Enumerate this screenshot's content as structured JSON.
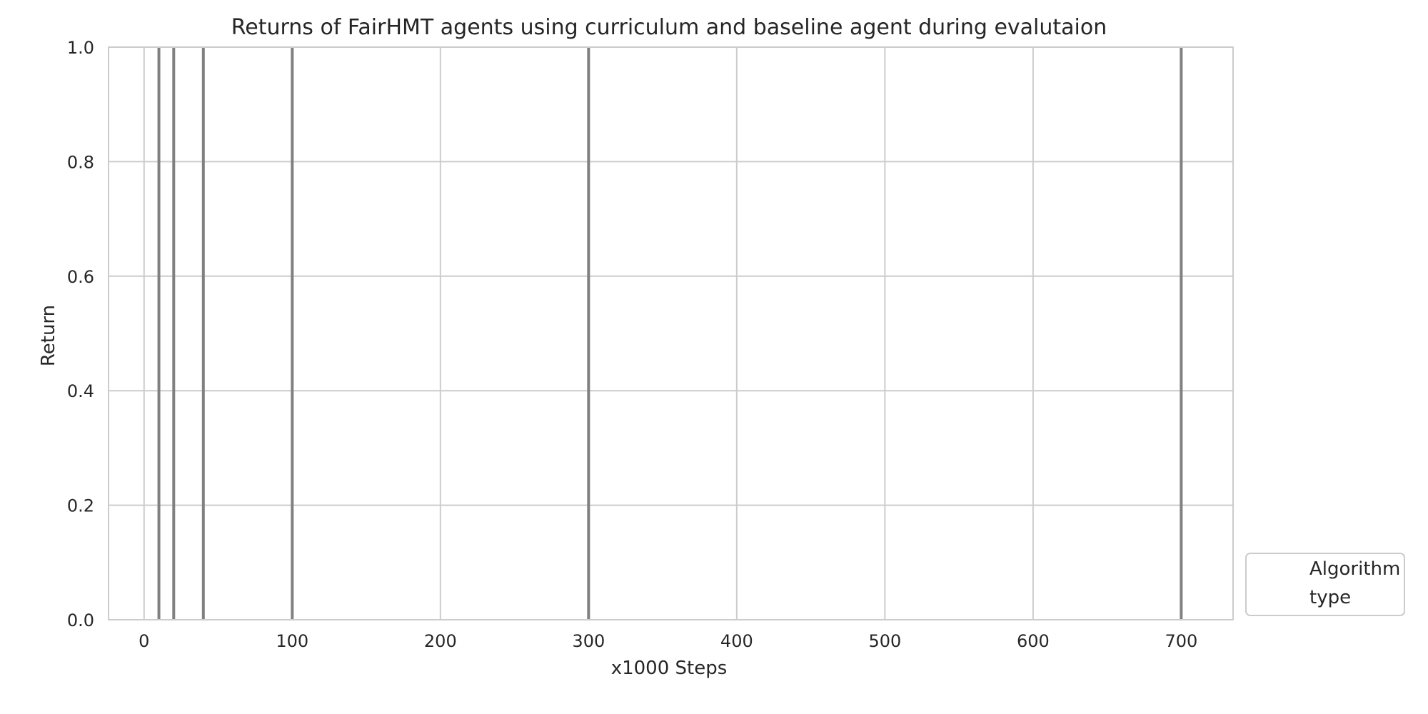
{
  "chart_data": {
    "type": "line",
    "title": "Returns of FairHMT agents using curriculum and baseline agent during evalutaion",
    "xlabel": "x1000 Steps",
    "ylabel": "Return",
    "xlim": [
      -24,
      735
    ],
    "ylim": [
      0.0,
      1.0
    ],
    "xticks": [
      0,
      100,
      200,
      300,
      400,
      500,
      600,
      700
    ],
    "xtick_labels": [
      "0",
      "100",
      "200",
      "300",
      "400",
      "500",
      "600",
      "700"
    ],
    "yticks": [
      0.0,
      0.2,
      0.4,
      0.6,
      0.8,
      1.0
    ],
    "ytick_labels": [
      "0.0",
      "0.2",
      "0.4",
      "0.6",
      "0.8",
      "1.0"
    ],
    "grid": true,
    "series": [],
    "vertical_lines": [
      {
        "x": 10,
        "color": "#808080"
      },
      {
        "x": 20,
        "color": "#808080"
      },
      {
        "x": 40,
        "color": "#808080"
      },
      {
        "x": 100,
        "color": "#808080"
      },
      {
        "x": 300,
        "color": "#808080"
      },
      {
        "x": 700,
        "color": "#808080"
      }
    ],
    "legend": {
      "placement": "outside-lower-right",
      "entries": [
        "Algorithm",
        "type"
      ]
    },
    "colors": {
      "grid": "#cccccc",
      "vline": "#808080",
      "spine": "#cccccc",
      "text": "#262626"
    }
  }
}
